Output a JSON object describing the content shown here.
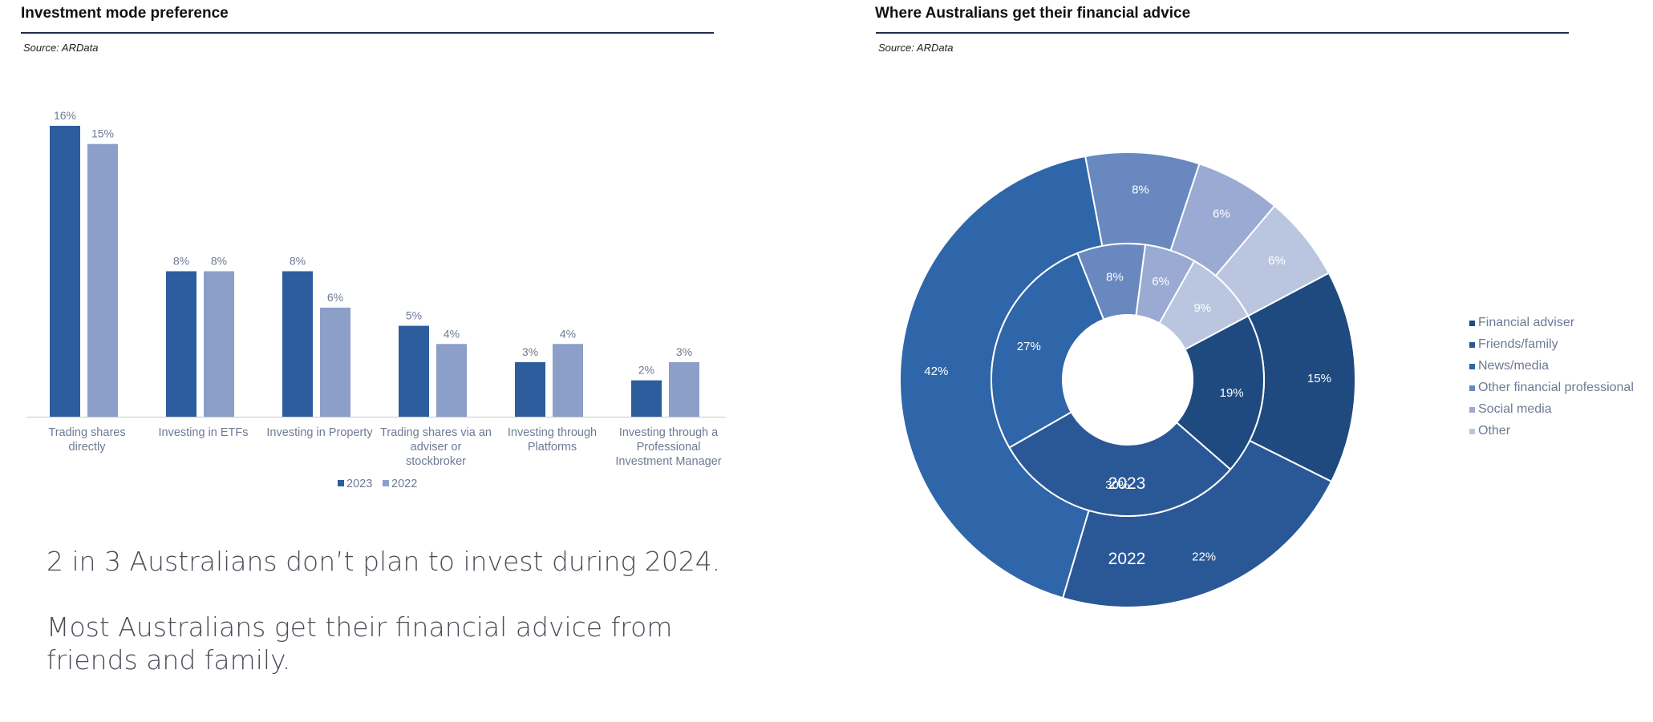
{
  "left_panel": {
    "title": "Investment mode preference",
    "source": "Source: ARData"
  },
  "right_panel": {
    "title": "Where Australians get their financial advice",
    "source": "Source: ARData"
  },
  "text_block": {
    "line1": "2 in 3 Australians don’t plan to invest during 2024.",
    "line2": "Most Australians get their financial advice from friends and family."
  },
  "colors": {
    "series_2023": "#2e5d9e",
    "series_2022": "#8c9fc9",
    "axis": "#c8c8c8",
    "label": "#6d7a94",
    "ring_border": "#ffffff"
  },
  "chart_data": [
    {
      "type": "bar",
      "title": "Investment mode preference",
      "categories": [
        [
          "Trading shares",
          "directly"
        ],
        [
          "Investing in ETFs"
        ],
        [
          "Investing in Property"
        ],
        [
          "Trading shares via an",
          "adviser or",
          "stockbroker"
        ],
        [
          "Investing through",
          "Platforms"
        ],
        [
          "Investing through a",
          "Professional",
          "Investment Manager"
        ]
      ],
      "series": [
        {
          "name": "2023",
          "values": [
            16,
            8,
            8,
            5,
            3,
            2
          ],
          "labels": [
            "16%",
            "8%",
            "8%",
            "5%",
            "3%",
            "2%"
          ]
        },
        {
          "name": "2022",
          "values": [
            15,
            8,
            6,
            4,
            4,
            3
          ],
          "labels": [
            "15%",
            "8%",
            "6%",
            "4%",
            "4%",
            "3%"
          ]
        }
      ],
      "ylim": [
        0,
        16
      ],
      "legend_position": "bottom"
    },
    {
      "type": "pie",
      "title": "Where Australians get their financial advice",
      "subtype": "nested donut",
      "categories": [
        "Financial adviser",
        "Friends/family",
        "News/media",
        "Other financial professional",
        "Social media",
        "Other"
      ],
      "category_colors": [
        "#1f4a80",
        "#2a5897",
        "#2f66a9",
        "#6888bf",
        "#9aaad2",
        "#bac6e0"
      ],
      "rings": [
        {
          "name": "2023",
          "position": "inner",
          "values": [
            19,
            30,
            27,
            8,
            6,
            9
          ],
          "labels": [
            "19%",
            "30%",
            "27%",
            "8%",
            "6%",
            "9%"
          ]
        },
        {
          "name": "2022",
          "position": "outer",
          "values": [
            15,
            22,
            42,
            8,
            6,
            6
          ],
          "labels": [
            "15%",
            "22%",
            "42%",
            "8%",
            "6%",
            "6%"
          ]
        }
      ],
      "legend_position": "right"
    }
  ]
}
